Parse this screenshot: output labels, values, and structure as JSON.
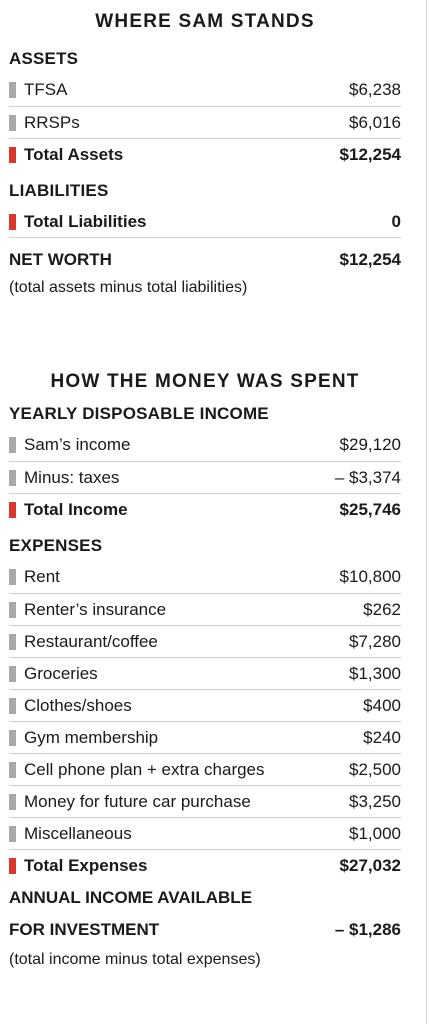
{
  "colors": {
    "grey_marker": "#a9a9a9",
    "red_marker": "#d9372c",
    "rule": "#cfcfcf"
  },
  "stands": {
    "title": "WHERE SAM STANDS",
    "assets_heading": "ASSETS",
    "assets": [
      {
        "label": "TFSA",
        "value": "$6,238"
      },
      {
        "label": "RRSPs",
        "value": "$6,016"
      }
    ],
    "total_assets": {
      "label": "Total Assets",
      "value": "$12,254"
    },
    "liabilities_heading": "LIABILITIES",
    "total_liabilities": {
      "label": "Total Liabilities",
      "value": "0"
    },
    "net_worth": {
      "label": "NET WORTH",
      "value": "$12,254"
    },
    "net_worth_note": "(total assets minus total liabilities)"
  },
  "spent": {
    "title": "HOW THE MONEY WAS SPENT",
    "income_heading": "YEARLY DISPOSABLE INCOME",
    "income": [
      {
        "label": "Sam’s income",
        "value": "$29,120"
      },
      {
        "label": "Minus: taxes",
        "value": "– $3,374"
      }
    ],
    "total_income": {
      "label": "Total Income",
      "value": "$25,746"
    },
    "expenses_heading": "EXPENSES",
    "expenses": [
      {
        "label": "Rent",
        "value": "$10,800"
      },
      {
        "label": "Renter’s insurance",
        "value": "$262"
      },
      {
        "label": "Restaurant/coffee",
        "value": "$7,280"
      },
      {
        "label": "Groceries",
        "value": "$1,300"
      },
      {
        "label": "Clothes/shoes",
        "value": "$400"
      },
      {
        "label": "Gym membership",
        "value": "$240"
      },
      {
        "label": "Cell phone plan + extra charges",
        "value": "$2,500"
      },
      {
        "label": "Money for future car purchase",
        "value": "$3,250"
      },
      {
        "label": "Miscellaneous",
        "value": "$1,000"
      }
    ],
    "total_expenses": {
      "label": "Total Expenses",
      "value": "$27,032"
    },
    "annual_line1": "ANNUAL INCOME AVAILABLE",
    "annual_line2": "FOR INVESTMENT",
    "annual_value": "– $1,286",
    "annual_note": "(total income minus total expenses)"
  }
}
